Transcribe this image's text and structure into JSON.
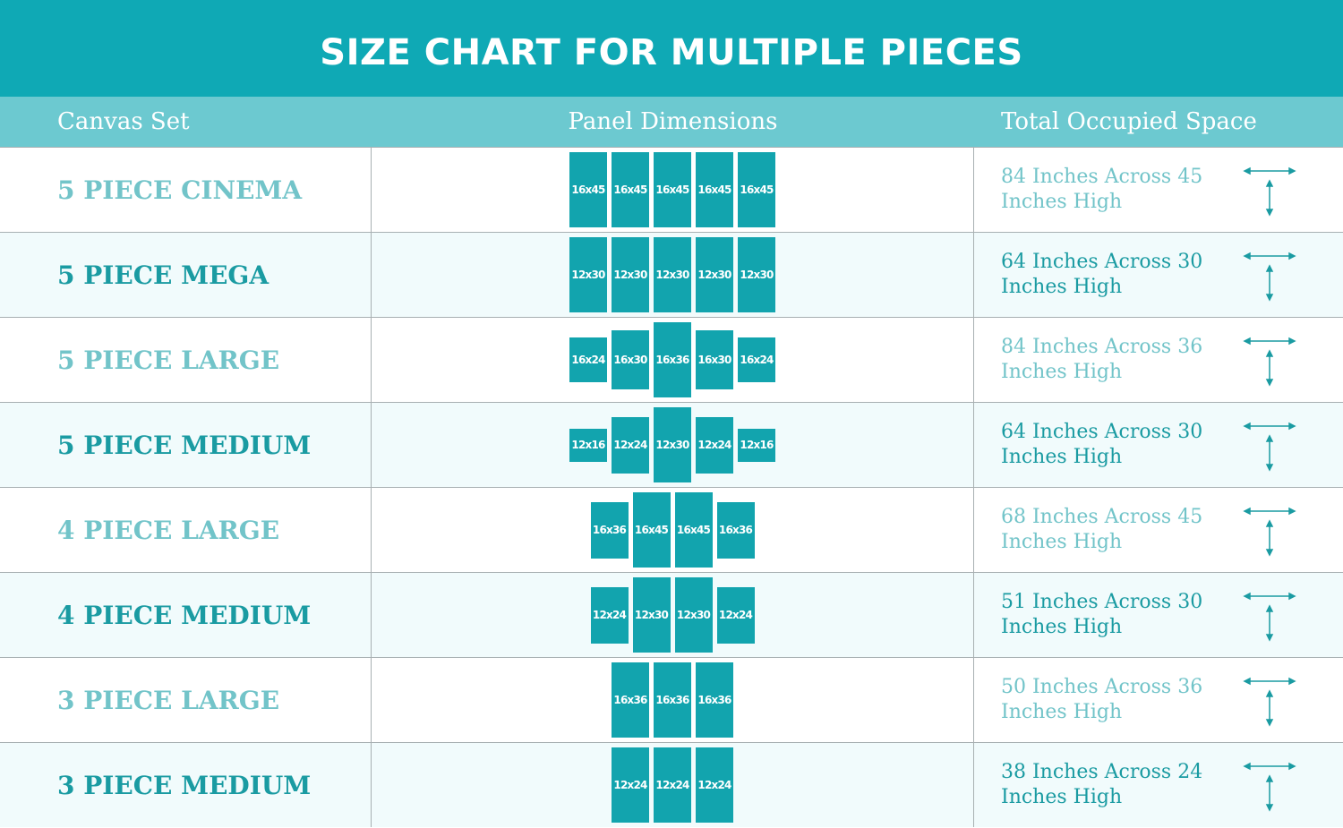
{
  "title": "SIZE CHART FOR MULTIPLE PIECES",
  "headers": {
    "set": "Canvas Set",
    "panels": "Panel Dimensions",
    "space": "Total Occupied Space"
  },
  "colors": {
    "banner": "#0fa9b5",
    "header": "#6cc9d0",
    "panel": "#12a4ae",
    "light_text": "#72c4c9",
    "dark_text": "#1a9ba2"
  },
  "rows": [
    {
      "name": "5 PIECE CINEMA",
      "panels": [
        "16x45",
        "16x45",
        "16x45",
        "16x45",
        "16x45"
      ],
      "across": "84 Inches Across",
      "high": "45 Inches High"
    },
    {
      "name": "5 PIECE MEGA",
      "panels": [
        "12x30",
        "12x30",
        "12x30",
        "12x30",
        "12x30"
      ],
      "across": "64 Inches Across",
      "high": "30 Inches High"
    },
    {
      "name": "5 PIECE LARGE",
      "panels": [
        "16x24",
        "16x30",
        "16x36",
        "16x30",
        "16x24"
      ],
      "across": "84 Inches Across",
      "high": "36 Inches High"
    },
    {
      "name": "5 PIECE MEDIUM",
      "panels": [
        "12x16",
        "12x24",
        "12x30",
        "12x24",
        "12x16"
      ],
      "across": "64 Inches Across",
      "high": "30 Inches High"
    },
    {
      "name": "4 PIECE LARGE",
      "panels": [
        "16x36",
        "16x45",
        "16x45",
        "16x36"
      ],
      "across": "68 Inches Across",
      "high": "45 Inches High"
    },
    {
      "name": "4 PIECE MEDIUM",
      "panels": [
        "12x24",
        "12x30",
        "12x30",
        "12x24"
      ],
      "across": "51 Inches Across",
      "high": "30 Inches High"
    },
    {
      "name": "3 PIECE LARGE",
      "panels": [
        "16x36",
        "16x36",
        "16x36"
      ],
      "across": "50 Inches Across",
      "high": "36 Inches High"
    },
    {
      "name": "3 PIECE MEDIUM",
      "panels": [
        "12x24",
        "12x24",
        "12x24"
      ],
      "across": "38 Inches Across",
      "high": "24 Inches High"
    }
  ]
}
